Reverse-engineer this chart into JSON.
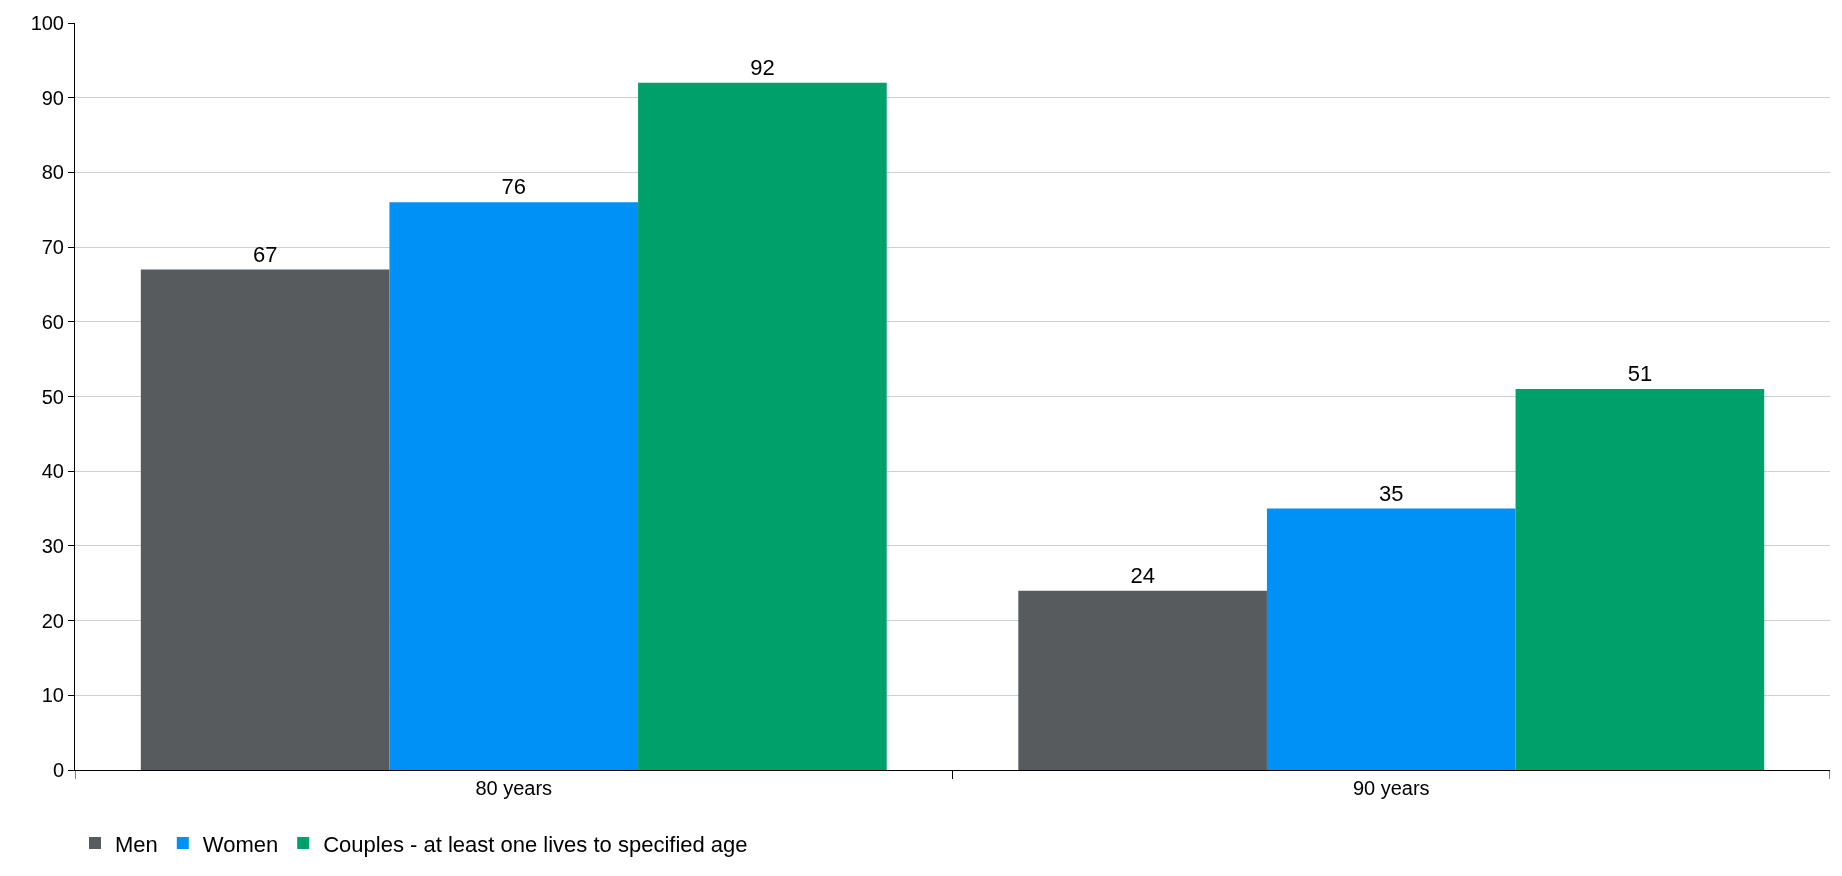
{
  "chart_data": {
    "type": "bar",
    "categories": [
      "80 years",
      "90 years"
    ],
    "series": [
      {
        "name": "Men",
        "color": "#575b5e",
        "values": [
          67,
          24
        ]
      },
      {
        "name": "Women",
        "color": "#0091f7",
        "values": [
          76,
          35
        ]
      },
      {
        "name": "Couples - at least one lives to specified age",
        "color": "#00a06b",
        "values": [
          92,
          51
        ]
      }
    ],
    "ylim": [
      0,
      100
    ],
    "yticks": [
      0,
      10,
      20,
      30,
      40,
      50,
      60,
      70,
      80,
      90,
      100
    ],
    "grid": "y",
    "legend": "bottom",
    "data_labels": true
  }
}
